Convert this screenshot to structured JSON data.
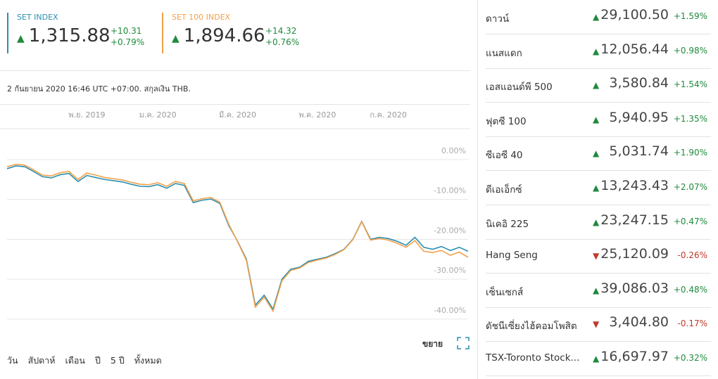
{
  "header": {
    "indices": [
      {
        "name": "SET INDEX",
        "value": "1,315.88",
        "change": "+10.31",
        "percent": "+0.79%",
        "color": "#2b8fb0"
      },
      {
        "name": "SET 100 INDEX",
        "value": "1,894.66",
        "change": "+14.32",
        "percent": "+0.76%",
        "color": "#f2a04a"
      }
    ],
    "timestamp": "2 กันยายน 2020 16:46 UTC +07:00. สกุลเงิน THB."
  },
  "chart_data": {
    "type": "line",
    "categories": [
      null,
      null,
      null,
      null,
      null,
      null,
      null,
      null,
      null,
      "พ.ย. 2019",
      null,
      null,
      null,
      null,
      null,
      null,
      null,
      "ม.ค. 2020",
      null,
      null,
      null,
      null,
      null,
      null,
      null,
      null,
      "มี.ค. 2020",
      null,
      null,
      null,
      null,
      null,
      null,
      null,
      null,
      "พ.ค. 2020",
      null,
      null,
      null,
      null,
      null,
      null,
      null,
      "ก.ค. 2020",
      null,
      null,
      null,
      null,
      null,
      null,
      null,
      null,
      null
    ],
    "series": [
      {
        "name": "SET INDEX",
        "color": "#2b8fb0",
        "values": [
          -2.3,
          -1.6,
          -1.8,
          -3.0,
          -4.3,
          -4.6,
          -3.8,
          -3.5,
          -5.5,
          -4.0,
          -4.5,
          -5.0,
          -5.3,
          -5.6,
          -6.2,
          -6.7,
          -6.8,
          -6.3,
          -7.2,
          -6.0,
          -6.5,
          -10.8,
          -10.2,
          -9.9,
          -11.0,
          -16.5,
          -20.5,
          -25.0,
          -36.5,
          -34.0,
          -37.5,
          -30.0,
          -27.5,
          -27.0,
          -25.5,
          -25.0,
          -24.5,
          -23.6,
          -22.5,
          -20.0,
          -15.5,
          -20.0,
          -19.5,
          -19.8,
          -20.5,
          -21.5,
          -19.5,
          -22.0,
          -22.5,
          -21.8,
          -22.8,
          -22.0,
          -23.0
        ]
      },
      {
        "name": "SET 100 INDEX",
        "color": "#f2a04a",
        "values": [
          -1.8,
          -1.2,
          -1.4,
          -2.6,
          -3.9,
          -4.1,
          -3.3,
          -3.0,
          -5.0,
          -3.4,
          -3.9,
          -4.5,
          -4.8,
          -5.1,
          -5.7,
          -6.2,
          -6.3,
          -5.8,
          -6.7,
          -5.5,
          -6.0,
          -10.4,
          -9.8,
          -9.5,
          -10.7,
          -16.2,
          -20.6,
          -25.3,
          -37.0,
          -34.5,
          -38.0,
          -30.4,
          -27.8,
          -27.2,
          -25.8,
          -25.2,
          -24.7,
          -23.8,
          -22.6,
          -20.1,
          -15.6,
          -20.2,
          -19.8,
          -20.2,
          -21.0,
          -22.0,
          -20.3,
          -23.0,
          -23.3,
          -22.8,
          -24.0,
          -23.2,
          -24.5
        ]
      }
    ],
    "ylim": [
      -42.5,
      6.5
    ],
    "yticks": [
      {
        "value": 0,
        "label": "0.00%"
      },
      {
        "value": -10,
        "label": "-10.00%"
      },
      {
        "value": -20,
        "label": "-20.00%"
      },
      {
        "value": -30,
        "label": "-30.00%"
      },
      {
        "value": -40,
        "label": "-40.00%"
      }
    ],
    "grid": true
  },
  "ranges": [
    "วัน",
    "สัปดาห์",
    "เดือน",
    "ปี",
    "5 ปี",
    "ทั้งหมด"
  ],
  "expand": "ขยาย",
  "markets": [
    {
      "name": "ดาวน์",
      "value": "29,100.50",
      "change": "+1.59%"
    },
    {
      "name": "แนสแดก",
      "value": "12,056.44",
      "change": "+0.98%"
    },
    {
      "name": "เอสแอนด์พี 500",
      "value": "3,580.84",
      "change": "+1.54%"
    },
    {
      "name": "ฟุตซี 100",
      "value": "5,940.95",
      "change": "+1.35%"
    },
    {
      "name": "ซีเอซี 40",
      "value": "5,031.74",
      "change": "+1.90%"
    },
    {
      "name": "ดีเอเอ็กซ์",
      "value": "13,243.43",
      "change": "+2.07%"
    },
    {
      "name": "นิเคอิ 225",
      "value": "23,247.15",
      "change": "+0.47%"
    },
    {
      "name": "Hang Seng",
      "value": "25,120.09",
      "change": "-0.26%"
    },
    {
      "name": "เซ็นเซกส์",
      "value": "39,086.03",
      "change": "+0.48%"
    },
    {
      "name": "ดัชนีเซี่ยงไฮ้คอมโพสิต",
      "value": "3,404.80",
      "change": "-0.17%"
    },
    {
      "name": "TSX-Toronto Stock...",
      "value": "16,697.97",
      "change": "+0.32%"
    }
  ]
}
